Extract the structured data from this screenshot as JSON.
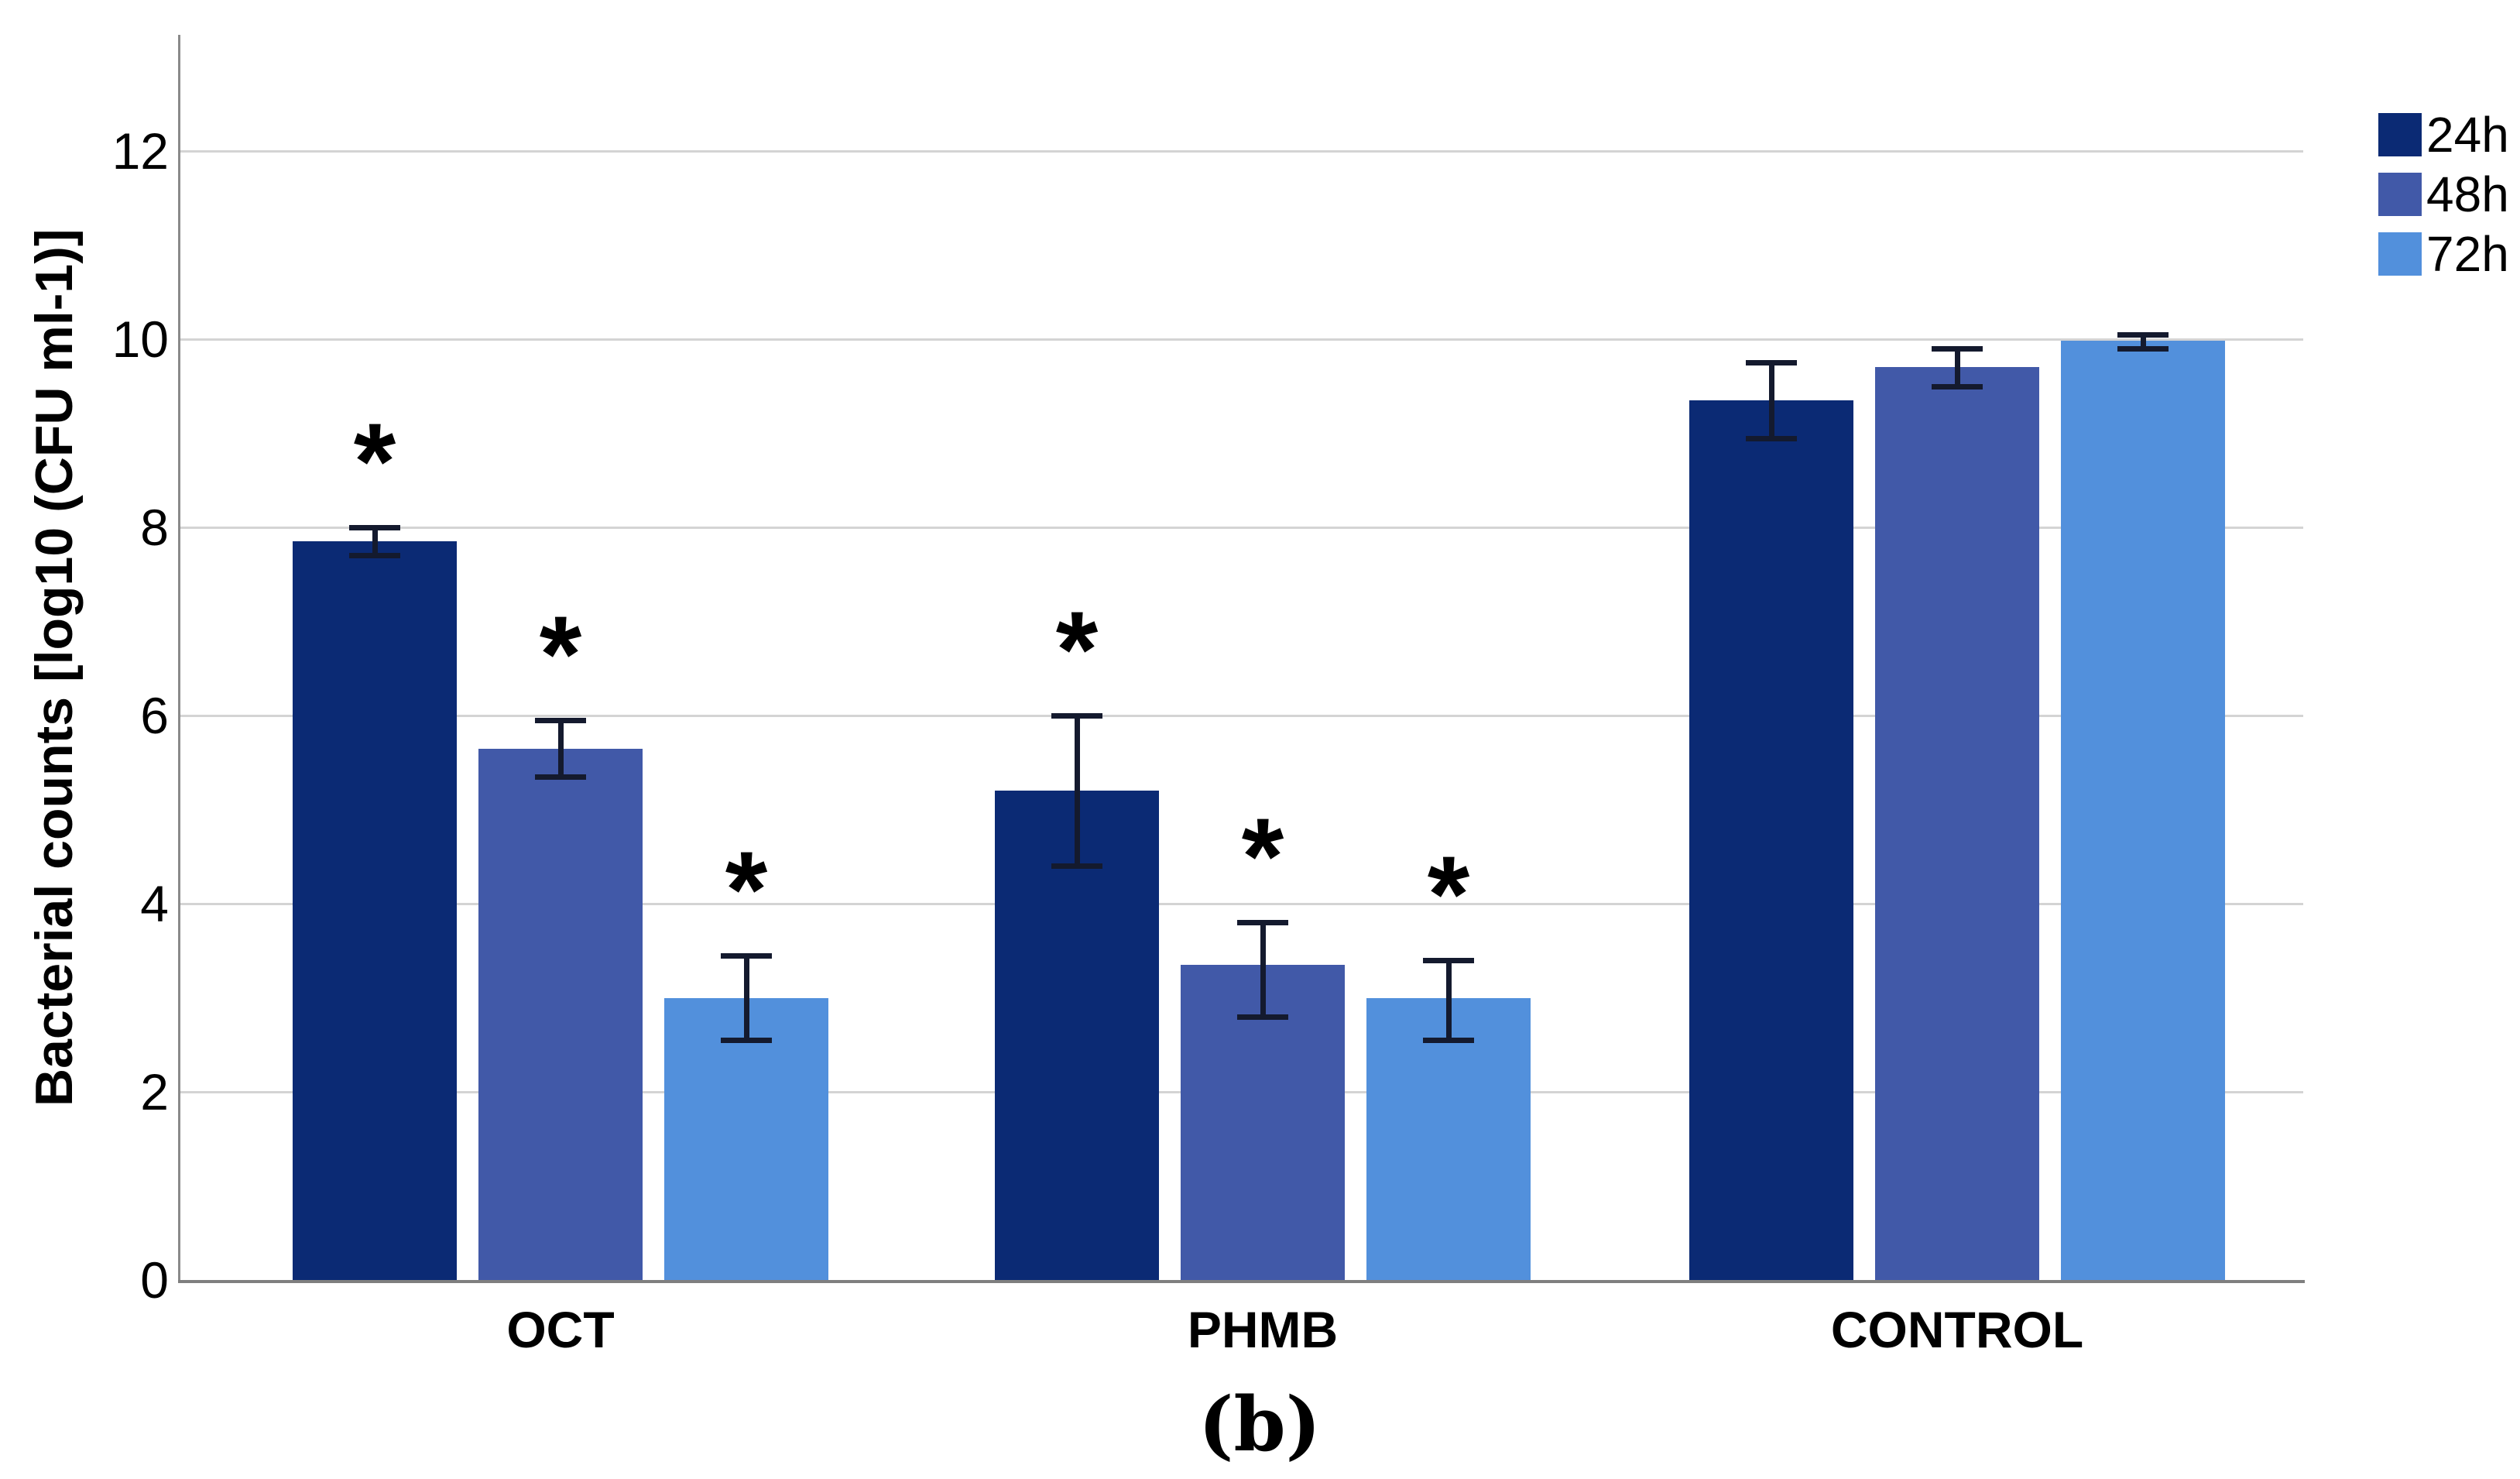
{
  "chart_data": {
    "type": "bar",
    "title": "",
    "xlabel": "",
    "ylabel": "Bacterial counts [log10 (CFU ml-1)]",
    "ylim": [
      0,
      13.2
    ],
    "yticks": [
      0,
      2,
      4,
      6,
      8,
      10,
      12
    ],
    "grid": "horizontal",
    "legend_position": "top-right-outside",
    "categories": [
      "OCT",
      "PHMB",
      "CONTROL"
    ],
    "series": [
      {
        "name": "24h",
        "color": "#0b2a74",
        "values": [
          7.85,
          5.2,
          9.35
        ],
        "err_low": [
          7.7,
          4.4,
          8.95
        ],
        "err_high": [
          8.0,
          6.0,
          9.75
        ],
        "significant": [
          true,
          true,
          false
        ]
      },
      {
        "name": "48h",
        "color": "#4159a8",
        "values": [
          5.65,
          3.35,
          9.7
        ],
        "err_low": [
          5.35,
          2.8,
          9.5
        ],
        "err_high": [
          5.95,
          3.8,
          9.9
        ],
        "significant": [
          true,
          true,
          false
        ]
      },
      {
        "name": "72h",
        "color": "#5290dc",
        "values": [
          3.0,
          3.0,
          9.98
        ],
        "err_low": [
          2.55,
          2.55,
          9.9
        ],
        "err_high": [
          3.45,
          3.4,
          10.05
        ],
        "significant": [
          true,
          true,
          false
        ]
      }
    ],
    "significance_symbol": "*",
    "caption": "(b)"
  },
  "colors": {
    "gridline": "#d4d4d4",
    "y_axis_line": "#8a8a8a",
    "x_axis_line": "#7f7f7f",
    "error_bar": "#141a2e",
    "text": "#000000",
    "background": "#ffffff"
  }
}
